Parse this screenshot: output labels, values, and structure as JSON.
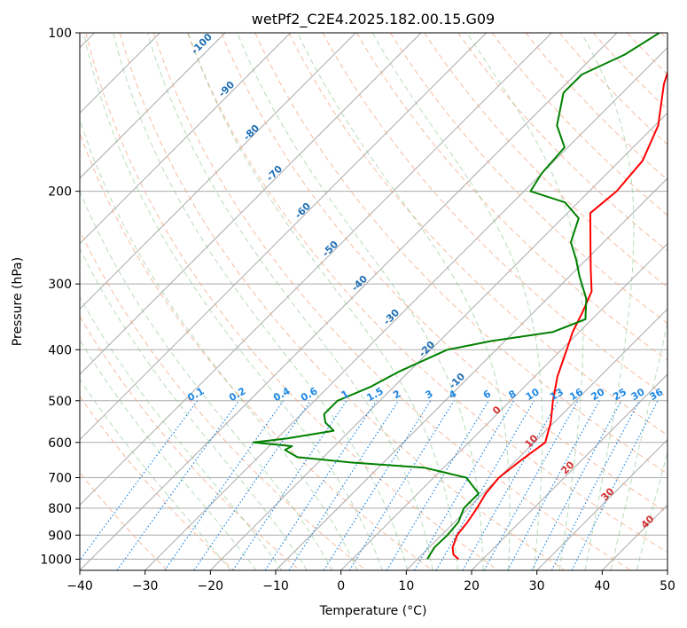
{
  "chart_data": {
    "type": "line",
    "subtype": "skew-t log-p sounding",
    "title": "wetPf2_C2E4.2025.182.00.15.G09",
    "xlabel": "Temperature (°C)",
    "ylabel": "Pressure (hPa)",
    "xlim": [
      -40,
      50
    ],
    "ylim": [
      1050,
      100
    ],
    "y_scale": "log",
    "x_ticks": [
      "−40",
      "−30",
      "−20",
      "−10",
      "0",
      "10",
      "20",
      "30",
      "40",
      "50"
    ],
    "y_ticks": [
      "100",
      "200",
      "300",
      "400",
      "500",
      "600",
      "700",
      "800",
      "900",
      "1000"
    ],
    "grid": true,
    "series": [
      {
        "role": "temperature",
        "color": "#ff0000",
        "points": [
          [
            1000,
            16.3
          ],
          [
            980,
            14.8
          ],
          [
            950,
            13.6
          ],
          [
            900,
            12.4
          ],
          [
            850,
            12.0
          ],
          [
            800,
            11.3
          ],
          [
            750,
            10.4
          ],
          [
            700,
            10.0
          ],
          [
            650,
            10.7
          ],
          [
            600,
            11.7
          ],
          [
            550,
            9.5
          ],
          [
            500,
            6.5
          ],
          [
            450,
            3.5
          ],
          [
            400,
            0.8
          ],
          [
            370,
            -1.0
          ],
          [
            340,
            -2.5
          ],
          [
            310,
            -4.3
          ],
          [
            280,
            -8.0
          ],
          [
            250,
            -12.0
          ],
          [
            220,
            -16.5
          ],
          [
            200,
            -15.8
          ],
          [
            175,
            -16.5
          ],
          [
            150,
            -19.5
          ],
          [
            125,
            -25.0
          ],
          [
            110,
            -28.0
          ],
          [
            100,
            -30.5
          ]
        ]
      },
      {
        "role": "dewpoint",
        "color": "#008000",
        "points": [
          [
            1000,
            11.5
          ],
          [
            950,
            10.8
          ],
          [
            900,
            10.9
          ],
          [
            850,
            10.6
          ],
          [
            800,
            9.3
          ],
          [
            750,
            9.3
          ],
          [
            700,
            5.0
          ],
          [
            670,
            -3.0
          ],
          [
            655,
            -15.0
          ],
          [
            640,
            -24.0
          ],
          [
            620,
            -27.0
          ],
          [
            610,
            -26.5
          ],
          [
            600,
            -33.0
          ],
          [
            590,
            -28.5
          ],
          [
            570,
            -22.5
          ],
          [
            550,
            -25.0
          ],
          [
            530,
            -26.5
          ],
          [
            500,
            -26.5
          ],
          [
            470,
            -23.5
          ],
          [
            440,
            -21.5
          ],
          [
            400,
            -17.5
          ],
          [
            385,
            -12.0
          ],
          [
            370,
            -4.0
          ],
          [
            350,
            -1.0
          ],
          [
            320,
            -4.0
          ],
          [
            290,
            -8.5
          ],
          [
            270,
            -11.5
          ],
          [
            250,
            -15.0
          ],
          [
            225,
            -17.5
          ],
          [
            210,
            -22.0
          ],
          [
            200,
            -29.0
          ],
          [
            185,
            -30.0
          ],
          [
            165,
            -30.5
          ],
          [
            150,
            -35.0
          ],
          [
            130,
            -39.0
          ],
          [
            120,
            -39.0
          ],
          [
            110,
            -35.5
          ],
          [
            100,
            -33.5
          ]
        ]
      }
    ],
    "mixing_ratio_labels": [
      "0.1",
      "0.2",
      "0.4",
      "0.6",
      "1",
      "1.5",
      "2",
      "3",
      "4",
      "6",
      "8",
      "10",
      "13",
      "16",
      "20",
      "25",
      "30",
      "36"
    ],
    "dry_adiabat_labels": [
      "-100",
      "-90",
      "-80",
      "-70",
      "-60",
      "-50",
      "-40",
      "-30",
      "-20",
      "-10"
    ],
    "moist_adiabat_labels": [
      "0",
      "10",
      "20",
      "30",
      "40"
    ]
  }
}
